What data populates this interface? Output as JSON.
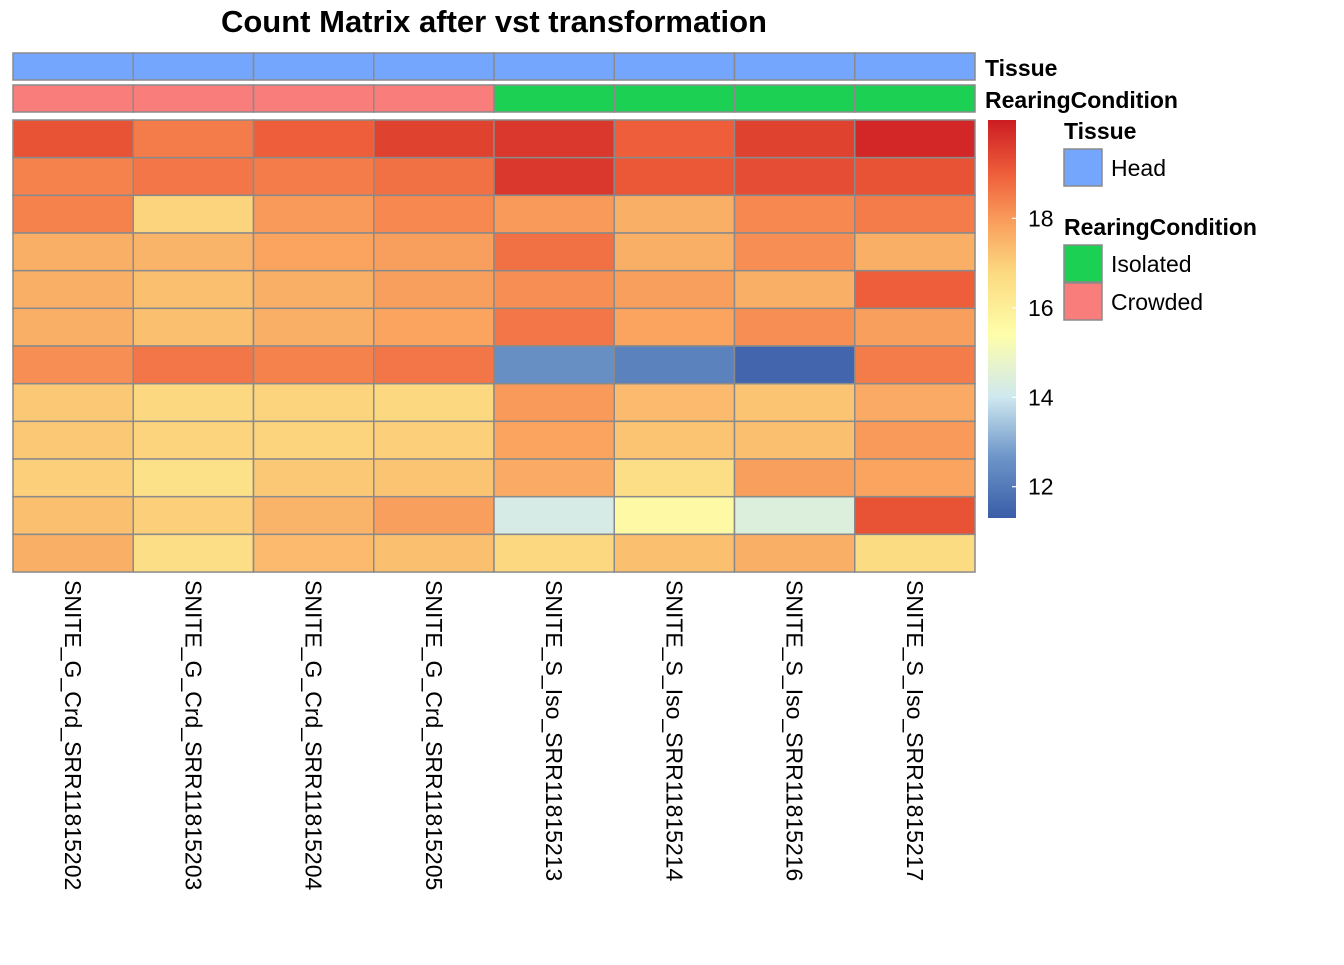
{
  "chart_data": {
    "type": "heatmap",
    "title": "Count Matrix after vst transformation",
    "columns": [
      "SNITE_G_Crd_SRR11815202",
      "SNITE_G_Crd_SRR11815203",
      "SNITE_G_Crd_SRR11815204",
      "SNITE_G_Crd_SRR11815205",
      "SNITE_S_Iso_SRR11815213",
      "SNITE_S_Iso_SRR11815214",
      "SNITE_S_Iso_SRR11815216",
      "SNITE_S_Iso_SRR11815217"
    ],
    "values": [
      [
        19.2,
        18.5,
        19.0,
        19.5,
        19.7,
        19.0,
        19.5,
        20.0
      ],
      [
        18.4,
        18.6,
        18.5,
        18.7,
        19.7,
        19.1,
        19.3,
        19.2
      ],
      [
        18.4,
        16.9,
        18.0,
        18.3,
        18.0,
        17.6,
        18.3,
        18.5
      ],
      [
        17.6,
        17.5,
        17.8,
        17.9,
        18.7,
        17.6,
        18.2,
        17.6
      ],
      [
        17.6,
        17.3,
        17.6,
        17.9,
        18.2,
        17.9,
        17.6,
        19.0
      ],
      [
        17.6,
        17.3,
        17.6,
        17.8,
        18.6,
        17.8,
        18.2,
        17.9
      ],
      [
        18.2,
        18.6,
        18.4,
        18.6,
        12.5,
        12.2,
        11.5,
        18.5
      ],
      [
        17.1,
        16.8,
        16.9,
        16.8,
        18.0,
        17.4,
        17.2,
        17.7
      ],
      [
        17.1,
        16.9,
        16.9,
        17.0,
        17.8,
        17.2,
        17.3,
        18.0
      ],
      [
        17.0,
        16.5,
        17.1,
        17.2,
        17.7,
        16.6,
        17.9,
        17.8
      ],
      [
        17.3,
        17.0,
        17.5,
        17.9,
        14.2,
        15.6,
        14.4,
        19.2
      ],
      [
        17.6,
        16.6,
        17.4,
        17.3,
        16.8,
        17.3,
        17.6,
        16.7
      ]
    ],
    "color_scale": {
      "min": 11.3,
      "max": 20.2,
      "stops": [
        {
          "value": 11.3,
          "color": "#3A5DA8"
        },
        {
          "value": 12.7,
          "color": "#6F97C9"
        },
        {
          "value": 14.0,
          "color": "#CFE8F0"
        },
        {
          "value": 15.4,
          "color": "#FEFEAA"
        },
        {
          "value": 16.8,
          "color": "#FCD980"
        },
        {
          "value": 18.0,
          "color": "#F99A5A"
        },
        {
          "value": 19.0,
          "color": "#EE5E3A"
        },
        {
          "value": 20.2,
          "color": "#CC1C22"
        }
      ],
      "ticks": [
        12,
        14,
        16,
        18
      ]
    },
    "annotations": [
      {
        "name": "Tissue",
        "values": [
          "Head",
          "Head",
          "Head",
          "Head",
          "Head",
          "Head",
          "Head",
          "Head"
        ],
        "colors": {
          "Head": "#73A6FC"
        }
      },
      {
        "name": "RearingCondition",
        "values": [
          "Crowded",
          "Crowded",
          "Crowded",
          "Crowded",
          "Isolated",
          "Isolated",
          "Isolated",
          "Isolated"
        ],
        "colors": {
          "Isolated": "#1BD053",
          "Crowded": "#F97D7A"
        }
      }
    ],
    "legend": [
      {
        "title": "Tissue",
        "items": [
          {
            "label": "Head",
            "color": "#73A6FC"
          }
        ]
      },
      {
        "title": "RearingCondition",
        "items": [
          {
            "label": "Isolated",
            "color": "#1BD053"
          },
          {
            "label": "Crowded",
            "color": "#F97D7A"
          }
        ]
      }
    ],
    "cell_border_color": "#8A8A8A"
  }
}
